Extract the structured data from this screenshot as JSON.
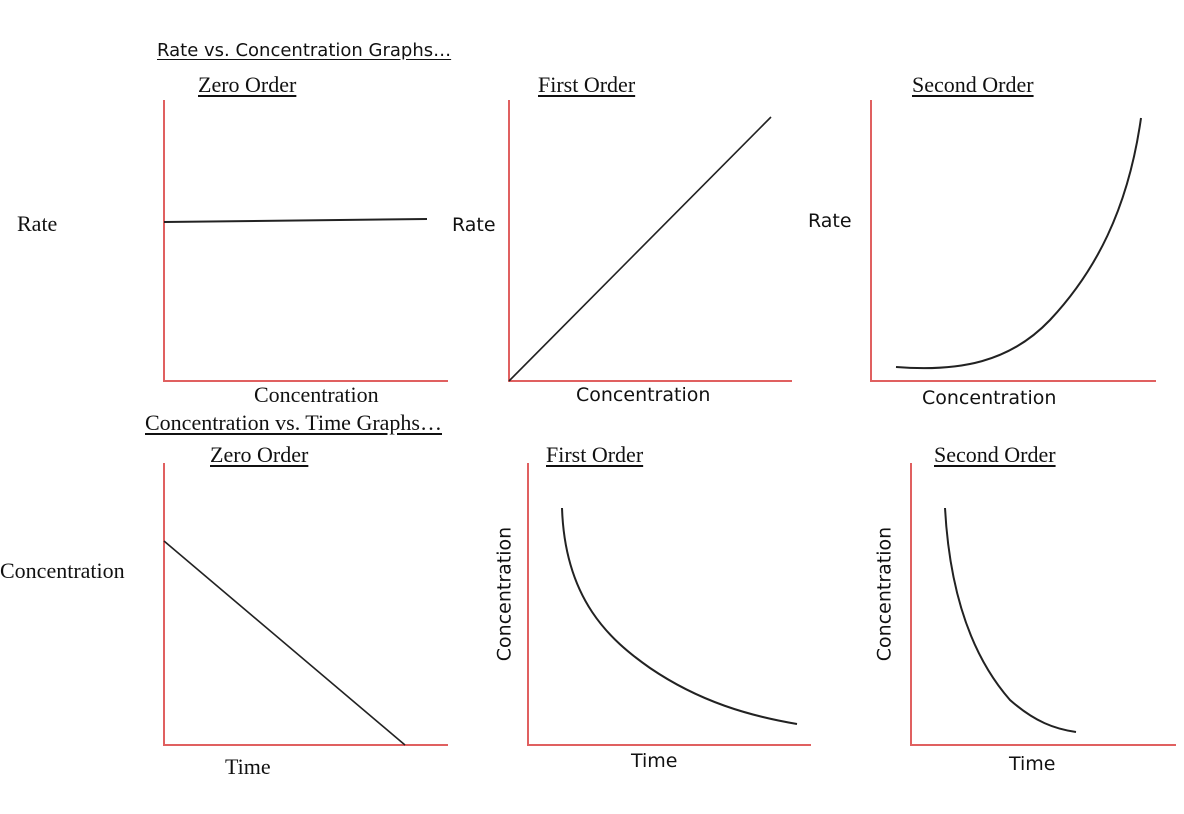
{
  "headings": {
    "rate_vs_conc": "Rate vs. Concentration Graphs…",
    "conc_vs_time": "Concentration vs. Time Graphs…"
  },
  "graphs": [
    {
      "id": "rate-zero",
      "title": "Zero Order",
      "ylabel": "Rate",
      "xlabel": "Concentration",
      "shape": "horizontal line"
    },
    {
      "id": "rate-first",
      "title": "First Order",
      "ylabel": "Rate",
      "xlabel": "Concentration",
      "shape": "straight line through origin"
    },
    {
      "id": "rate-second",
      "title": "Second Order",
      "ylabel": "Rate",
      "xlabel": "Concentration",
      "shape": "upward curve"
    },
    {
      "id": "conc-zero",
      "title": "Zero Order",
      "ylabel": "Concentration",
      "xlabel": "Time",
      "shape": "straight line decreasing"
    },
    {
      "id": "conc-first",
      "title": "First Order",
      "ylabel": "Concentration",
      "xlabel": "Time",
      "shape": "gradual decay curve"
    },
    {
      "id": "conc-second",
      "title": "Second Order",
      "ylabel": "Concentration",
      "xlabel": "Time",
      "shape": "steep decay curve"
    }
  ],
  "colors": {
    "axis": "#e06060",
    "curve": "#222222",
    "text": "#111111"
  }
}
